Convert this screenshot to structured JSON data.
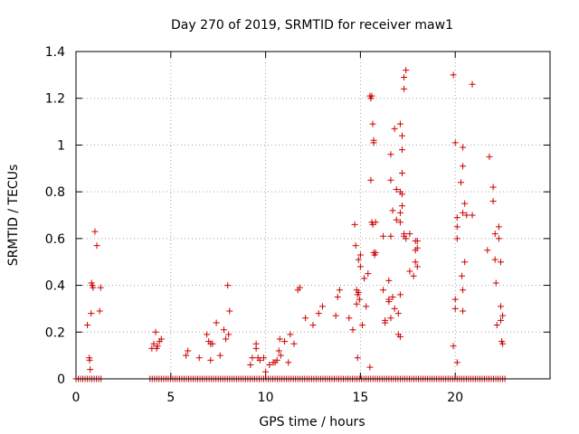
{
  "chart_data": {
    "type": "scatter",
    "title": "Day 270 of 2019, SRMTID for receiver maw1",
    "xlabel": "GPS time / hours",
    "ylabel": "SRMTID / TECUs",
    "xlim": [
      0,
      25
    ],
    "ylim": [
      0,
      1.4
    ],
    "xticks": [
      0,
      5,
      10,
      15,
      20
    ],
    "yticks": [
      0,
      0.2,
      0.4,
      0.6,
      0.8,
      1,
      1.2,
      1.4
    ],
    "ytick_labels": [
      "0",
      "0.2",
      "0.4",
      "0.6",
      "0.8",
      "1",
      "1.2",
      "1.4"
    ],
    "grid": true,
    "marker": "+",
    "color": "#cc0000",
    "series": [
      {
        "name": "SRMTID",
        "points": [
          [
            0.6,
            0.23
          ],
          [
            0.7,
            0.09
          ],
          [
            0.72,
            0.08
          ],
          [
            0.75,
            0.04
          ],
          [
            0.8,
            0.28
          ],
          [
            0.82,
            0.41
          ],
          [
            0.86,
            0.4
          ],
          [
            0.9,
            0.39
          ],
          [
            1.0,
            0.63
          ],
          [
            1.1,
            0.57
          ],
          [
            1.25,
            0.29
          ],
          [
            1.3,
            0.39
          ],
          [
            4.0,
            0.13
          ],
          [
            4.1,
            0.15
          ],
          [
            4.2,
            0.2
          ],
          [
            4.25,
            0.13
          ],
          [
            4.3,
            0.14
          ],
          [
            4.4,
            0.16
          ],
          [
            4.5,
            0.17
          ],
          [
            5.8,
            0.1
          ],
          [
            5.9,
            0.12
          ],
          [
            6.5,
            0.09
          ],
          [
            6.9,
            0.19
          ],
          [
            7.0,
            0.16
          ],
          [
            7.1,
            0.08
          ],
          [
            7.1,
            0.15
          ],
          [
            7.2,
            0.15
          ],
          [
            7.4,
            0.24
          ],
          [
            7.6,
            0.1
          ],
          [
            7.8,
            0.21
          ],
          [
            7.9,
            0.17
          ],
          [
            8.0,
            0.4
          ],
          [
            8.05,
            0.19
          ],
          [
            8.1,
            0.29
          ],
          [
            9.2,
            0.06
          ],
          [
            9.3,
            0.09
          ],
          [
            9.5,
            0.13
          ],
          [
            9.5,
            0.15
          ],
          [
            9.6,
            0.09
          ],
          [
            9.7,
            0.08
          ],
          [
            9.9,
            0.09
          ],
          [
            10.0,
            0.03
          ],
          [
            10.2,
            0.06
          ],
          [
            10.4,
            0.07
          ],
          [
            10.5,
            0.07
          ],
          [
            10.6,
            0.08
          ],
          [
            10.7,
            0.12
          ],
          [
            10.75,
            0.17
          ],
          [
            10.8,
            0.1
          ],
          [
            11.0,
            0.16
          ],
          [
            11.2,
            0.07
          ],
          [
            11.3,
            0.19
          ],
          [
            11.5,
            0.15
          ],
          [
            11.7,
            0.38
          ],
          [
            11.8,
            0.39
          ],
          [
            12.1,
            0.26
          ],
          [
            12.5,
            0.23
          ],
          [
            12.8,
            0.28
          ],
          [
            13.0,
            0.31
          ],
          [
            13.7,
            0.27
          ],
          [
            13.8,
            0.35
          ],
          [
            13.9,
            0.38
          ],
          [
            14.4,
            0.26
          ],
          [
            14.6,
            0.21
          ],
          [
            14.7,
            0.66
          ],
          [
            14.75,
            0.57
          ],
          [
            14.8,
            0.38
          ],
          [
            14.8,
            0.32
          ],
          [
            14.85,
            0.36
          ],
          [
            14.85,
            0.09
          ],
          [
            14.9,
            0.51
          ],
          [
            14.9,
            0.37
          ],
          [
            14.95,
            0.34
          ],
          [
            15.0,
            0.53
          ],
          [
            15.0,
            0.48
          ],
          [
            15.1,
            0.23
          ],
          [
            15.2,
            0.43
          ],
          [
            15.3,
            0.31
          ],
          [
            15.4,
            0.45
          ],
          [
            15.5,
            0.05
          ],
          [
            15.5,
            1.21
          ],
          [
            15.55,
            1.2
          ],
          [
            15.55,
            0.85
          ],
          [
            15.6,
            0.67
          ],
          [
            15.6,
            1.21
          ],
          [
            15.65,
            1.09
          ],
          [
            15.65,
            0.66
          ],
          [
            15.7,
            1.02
          ],
          [
            15.7,
            1.01
          ],
          [
            15.7,
            0.54
          ],
          [
            15.75,
            0.53
          ],
          [
            15.8,
            0.54
          ],
          [
            15.8,
            0.67
          ],
          [
            16.2,
            0.61
          ],
          [
            16.2,
            0.38
          ],
          [
            16.3,
            0.24
          ],
          [
            16.3,
            0.25
          ],
          [
            16.5,
            0.42
          ],
          [
            16.5,
            0.34
          ],
          [
            16.5,
            0.33
          ],
          [
            16.6,
            0.96
          ],
          [
            16.6,
            0.85
          ],
          [
            16.6,
            0.61
          ],
          [
            16.6,
            0.26
          ],
          [
            16.7,
            0.72
          ],
          [
            16.7,
            0.35
          ],
          [
            16.8,
            1.07
          ],
          [
            16.8,
            0.3
          ],
          [
            16.9,
            0.81
          ],
          [
            16.9,
            0.68
          ],
          [
            17.0,
            0.28
          ],
          [
            17.0,
            0.19
          ],
          [
            17.1,
            0.8
          ],
          [
            17.1,
            0.71
          ],
          [
            17.1,
            0.67
          ],
          [
            17.1,
            0.36
          ],
          [
            17.1,
            0.18
          ],
          [
            17.1,
            1.09
          ],
          [
            17.2,
            1.04
          ],
          [
            17.2,
            0.98
          ],
          [
            17.2,
            0.88
          ],
          [
            17.2,
            0.79
          ],
          [
            17.2,
            0.74
          ],
          [
            17.3,
            1.24
          ],
          [
            17.3,
            1.29
          ],
          [
            17.4,
            1.32
          ],
          [
            17.3,
            0.62
          ],
          [
            17.3,
            0.61
          ],
          [
            17.4,
            0.6
          ],
          [
            17.6,
            0.62
          ],
          [
            17.6,
            0.46
          ],
          [
            17.8,
            0.44
          ],
          [
            17.9,
            0.59
          ],
          [
            17.9,
            0.55
          ],
          [
            17.9,
            0.5
          ],
          [
            18.0,
            0.48
          ],
          [
            18.0,
            0.59
          ],
          [
            18.0,
            0.56
          ],
          [
            19.9,
            1.3
          ],
          [
            19.9,
            0.14
          ],
          [
            20.0,
            1.01
          ],
          [
            20.0,
            0.34
          ],
          [
            20.0,
            0.3
          ],
          [
            20.1,
            0.69
          ],
          [
            20.1,
            0.65
          ],
          [
            20.1,
            0.6
          ],
          [
            20.1,
            0.07
          ],
          [
            20.3,
            0.84
          ],
          [
            20.35,
            0.44
          ],
          [
            20.4,
            0.99
          ],
          [
            20.4,
            0.91
          ],
          [
            20.4,
            0.71
          ],
          [
            20.4,
            0.38
          ],
          [
            20.4,
            0.29
          ],
          [
            20.5,
            0.75
          ],
          [
            20.5,
            0.5
          ],
          [
            20.6,
            0.7
          ],
          [
            20.9,
            1.26
          ],
          [
            20.9,
            0.7
          ],
          [
            21.7,
            0.55
          ],
          [
            21.8,
            0.95
          ],
          [
            22.0,
            0.82
          ],
          [
            22.0,
            0.76
          ],
          [
            22.1,
            0.62
          ],
          [
            22.1,
            0.51
          ],
          [
            22.15,
            0.41
          ],
          [
            22.2,
            0.23
          ],
          [
            22.3,
            0.65
          ],
          [
            22.3,
            0.6
          ],
          [
            22.4,
            0.5
          ],
          [
            22.4,
            0.31
          ],
          [
            22.4,
            0.25
          ],
          [
            22.5,
            0.27
          ],
          [
            22.5,
            0.15
          ],
          [
            22.45,
            0.16
          ]
        ]
      }
    ],
    "zero_band": {
      "y": 0,
      "segments": [
        [
          0,
          1.4
        ],
        [
          3.9,
          22.7
        ]
      ],
      "step": 0.12
    }
  }
}
